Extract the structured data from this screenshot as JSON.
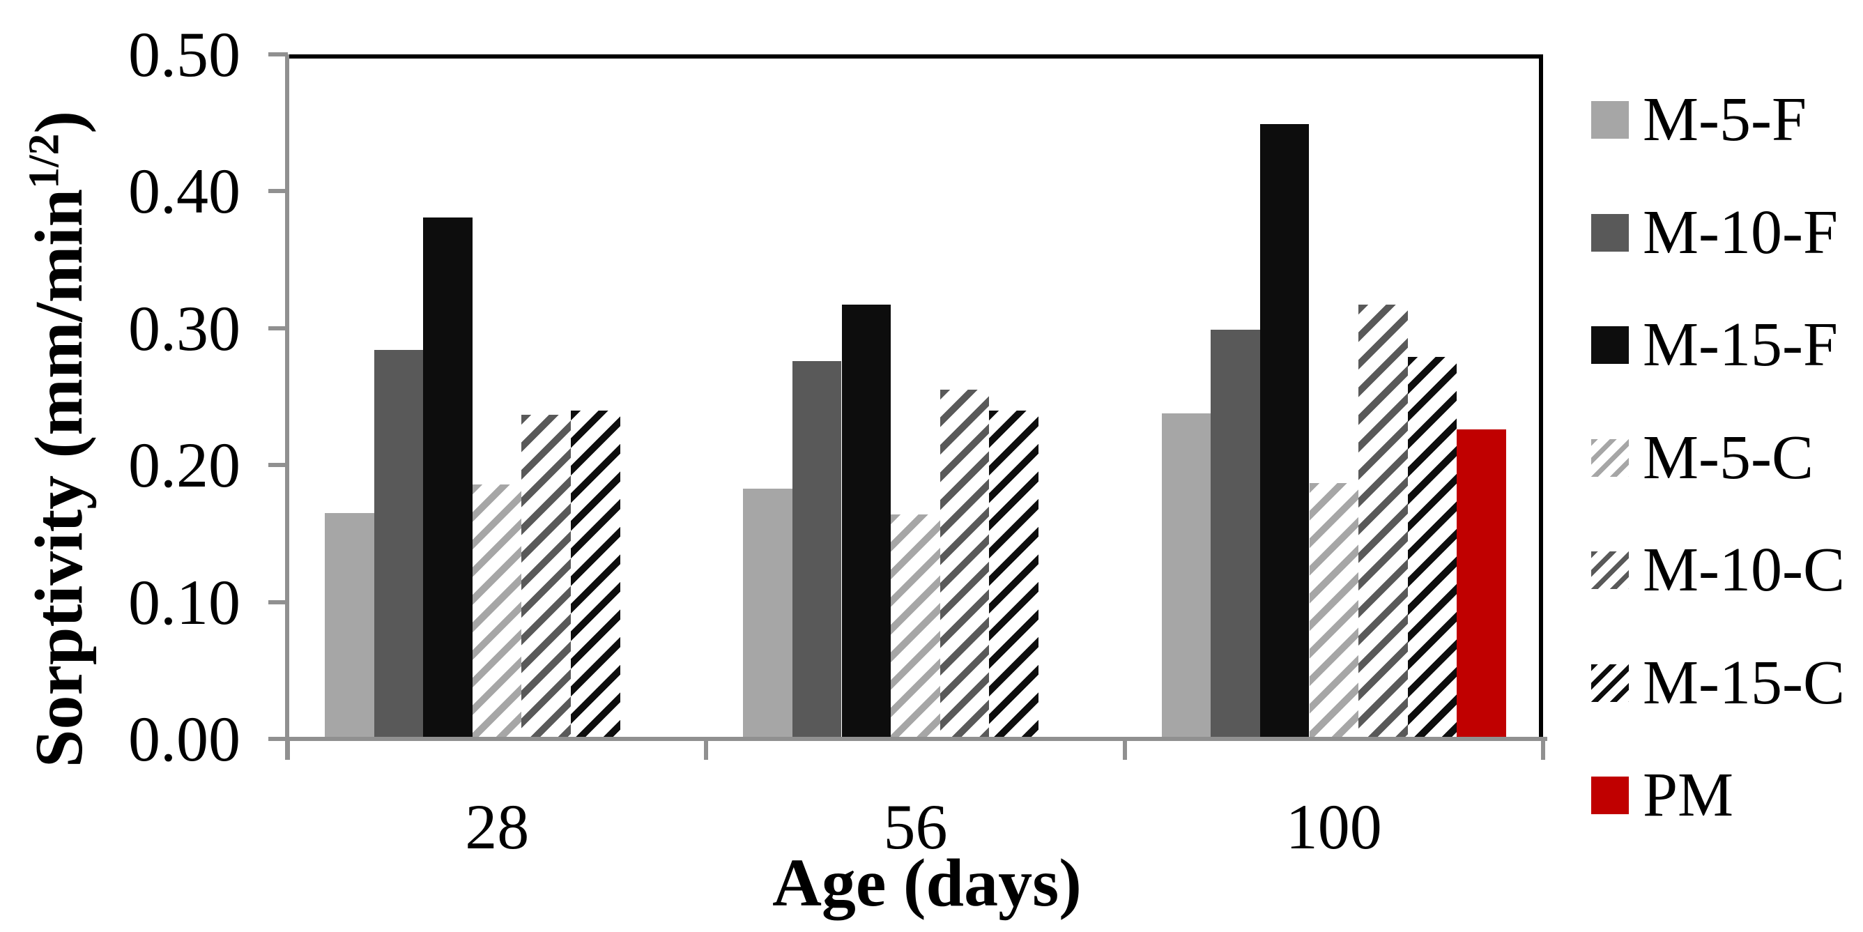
{
  "chart_data": {
    "type": "bar",
    "title": "",
    "xlabel": "Age (days)",
    "ylabel_prefix": "Sorptivity (mm/min",
    "ylabel_sup": "1/2",
    "ylabel_suffix": ")",
    "categories": [
      "28",
      "56",
      "100"
    ],
    "series": [
      {
        "name": "M-5-F",
        "color": "#a6a6a6",
        "pattern": "solid",
        "values": [
          0.165,
          0.183,
          0.238
        ]
      },
      {
        "name": "M-10-F",
        "color": "#595959",
        "pattern": "solid",
        "values": [
          0.284,
          0.276,
          0.299
        ]
      },
      {
        "name": "M-15-F",
        "color": "#0d0d0d",
        "pattern": "solid",
        "values": [
          0.381,
          0.317,
          0.449
        ]
      },
      {
        "name": "M-5-C",
        "color": "#a6a6a6",
        "pattern": "hatch",
        "values": [
          0.186,
          0.164,
          0.187
        ]
      },
      {
        "name": "M-10-C",
        "color": "#595959",
        "pattern": "hatch",
        "values": [
          0.237,
          0.255,
          0.317
        ]
      },
      {
        "name": "M-15-C",
        "color": "#0d0d0d",
        "pattern": "hatch",
        "values": [
          0.24,
          0.24,
          0.279
        ]
      },
      {
        "name": "PM",
        "color": "#c00000",
        "pattern": "solid",
        "values": [
          null,
          null,
          0.226
        ]
      }
    ],
    "ylim": [
      0,
      0.5
    ],
    "yticks": [
      "0.00",
      "0.10",
      "0.20",
      "0.30",
      "0.40",
      "0.50"
    ],
    "grid": false,
    "legend_position": "right"
  },
  "colors": {
    "axis_line": "#909090",
    "plot_border": "#000000",
    "background": "#ffffff"
  }
}
